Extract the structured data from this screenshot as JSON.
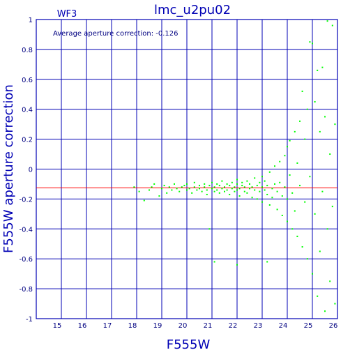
{
  "chart_data": {
    "type": "scatter",
    "title": "lmc_u2pu02",
    "panel_label": "WF3",
    "annotation": "Average aperture correction:  -0.126",
    "xlabel": "F555W",
    "ylabel": "F555W aperture correction",
    "xlim": [
      14,
      26
    ],
    "ylim": [
      -1,
      1
    ],
    "x_ticks": [
      "15",
      "16",
      "17",
      "18",
      "19",
      "20",
      "21",
      "22",
      "23",
      "24",
      "25",
      "26"
    ],
    "y_ticks": [
      "1",
      "0.8",
      "0.6",
      "0.4",
      "0.2",
      "0",
      "-0.2",
      "-0.4",
      "-0.6",
      "-0.8",
      "-1"
    ],
    "grid": true,
    "average_line": {
      "y": -0.126,
      "color": "#ff0000"
    },
    "colors": {
      "axes": "#0000b4",
      "points": "#00ff00",
      "text": "#000080"
    },
    "series": [
      {
        "points": [
          [
            17.9,
            -0.12
          ],
          [
            18.1,
            -0.15
          ],
          [
            18.3,
            -0.21
          ],
          [
            18.5,
            -0.14
          ],
          [
            18.6,
            -0.12
          ],
          [
            18.7,
            -0.1
          ],
          [
            18.9,
            -0.18
          ],
          [
            19.0,
            -0.13
          ],
          [
            19.1,
            -0.11
          ],
          [
            19.2,
            -0.16
          ],
          [
            19.3,
            -0.12
          ],
          [
            19.4,
            -0.14
          ],
          [
            19.5,
            -0.1
          ],
          [
            19.6,
            -0.13
          ],
          [
            19.7,
            -0.15
          ],
          [
            19.8,
            -0.12
          ],
          [
            19.9,
            -0.11
          ],
          [
            20.0,
            -0.14
          ],
          [
            20.0,
            -0.1
          ],
          [
            20.1,
            -0.13
          ],
          [
            20.2,
            -0.16
          ],
          [
            20.3,
            -0.12
          ],
          [
            20.3,
            -0.09
          ],
          [
            20.4,
            -0.14
          ],
          [
            20.5,
            -0.11
          ],
          [
            20.5,
            -0.13
          ],
          [
            20.6,
            -0.15
          ],
          [
            20.7,
            -0.1
          ],
          [
            20.7,
            -0.12
          ],
          [
            20.8,
            -0.14
          ],
          [
            20.8,
            -0.17
          ],
          [
            20.9,
            -0.11
          ],
          [
            21.0,
            -0.13
          ],
          [
            21.0,
            -0.09
          ],
          [
            21.1,
            -0.15
          ],
          [
            21.1,
            -0.12
          ],
          [
            21.2,
            -0.1
          ],
          [
            21.2,
            -0.14
          ],
          [
            21.3,
            -0.16
          ],
          [
            21.3,
            -0.11
          ],
          [
            21.4,
            -0.13
          ],
          [
            21.4,
            -0.08
          ],
          [
            21.5,
            -0.12
          ],
          [
            21.5,
            -0.15
          ],
          [
            21.6,
            -0.1
          ],
          [
            21.6,
            -0.14
          ],
          [
            21.7,
            -0.11
          ],
          [
            21.7,
            -0.17
          ],
          [
            21.8,
            -0.09
          ],
          [
            21.8,
            -0.13
          ],
          [
            21.9,
            -0.12
          ],
          [
            21.9,
            -0.15
          ],
          [
            22.0,
            -0.1
          ],
          [
            22.0,
            -0.14
          ],
          [
            22.0,
            -0.07
          ],
          [
            22.1,
            -0.13
          ],
          [
            22.1,
            -0.18
          ],
          [
            22.2,
            -0.11
          ],
          [
            22.2,
            -0.09
          ],
          [
            22.3,
            -0.15
          ],
          [
            22.3,
            -0.12
          ],
          [
            22.4,
            -0.08
          ],
          [
            22.4,
            -0.16
          ],
          [
            22.5,
            -0.13
          ],
          [
            22.5,
            -0.1
          ],
          [
            22.6,
            -0.19
          ],
          [
            22.6,
            -0.12
          ],
          [
            22.7,
            -0.06
          ],
          [
            22.7,
            -0.14
          ],
          [
            22.8,
            -0.11
          ],
          [
            22.8,
            -0.2
          ],
          [
            22.9,
            -0.09
          ],
          [
            22.9,
            -0.15
          ],
          [
            23.0,
            -0.12
          ],
          [
            23.0,
            -0.05
          ],
          [
            23.0,
            -0.22
          ],
          [
            23.1,
            -0.14
          ],
          [
            23.1,
            -0.08
          ],
          [
            23.2,
            -0.17
          ],
          [
            23.2,
            -0.11
          ],
          [
            23.3,
            -0.02
          ],
          [
            23.3,
            -0.24
          ],
          [
            23.4,
            -0.13
          ],
          [
            23.4,
            -0.19
          ],
          [
            23.5,
            0.02
          ],
          [
            23.5,
            -0.1
          ],
          [
            23.6,
            -0.27
          ],
          [
            23.6,
            -0.15
          ],
          [
            23.7,
            0.05
          ],
          [
            23.7,
            -0.09
          ],
          [
            23.8,
            -0.31
          ],
          [
            23.8,
            -0.18
          ],
          [
            23.9,
            0.09
          ],
          [
            23.9,
            -0.12
          ],
          [
            24.0,
            -0.35
          ],
          [
            24.0,
            0.15
          ],
          [
            24.0,
            -0.2
          ],
          [
            24.1,
            -0.04
          ],
          [
            24.1,
            0.19
          ],
          [
            24.2,
            -0.4
          ],
          [
            24.2,
            -0.16
          ],
          [
            24.3,
            0.25
          ],
          [
            24.3,
            -0.28
          ],
          [
            24.4,
            0.04
          ],
          [
            24.4,
            -0.45
          ],
          [
            24.5,
            0.32
          ],
          [
            24.5,
            -0.11
          ],
          [
            24.6,
            0.52
          ],
          [
            24.6,
            -0.52
          ],
          [
            24.7,
            0.2
          ],
          [
            24.7,
            -0.22
          ],
          [
            24.8,
            0.4
          ],
          [
            24.8,
            -0.6
          ],
          [
            24.9,
            0.85
          ],
          [
            24.9,
            -0.05
          ],
          [
            25.0,
            0.84
          ],
          [
            25.0,
            -0.7
          ],
          [
            25.1,
            0.45
          ],
          [
            25.1,
            -0.3
          ],
          [
            25.2,
            0.66
          ],
          [
            25.2,
            -0.85
          ],
          [
            25.3,
            0.25
          ],
          [
            25.3,
            -0.55
          ],
          [
            25.4,
            0.68
          ],
          [
            25.4,
            -0.15
          ],
          [
            25.5,
            0.35
          ],
          [
            25.5,
            -0.95
          ],
          [
            25.6,
            0.99
          ],
          [
            25.6,
            -0.4
          ],
          [
            25.7,
            0.1
          ],
          [
            25.7,
            -0.75
          ],
          [
            25.8,
            0.96
          ],
          [
            25.8,
            -0.25
          ],
          [
            25.9,
            0.3
          ],
          [
            25.9,
            -0.9
          ],
          [
            21.1,
            -0.62
          ],
          [
            22.0,
            -0.64
          ],
          [
            23.2,
            -0.62
          ],
          [
            20.9,
            -0.4
          ]
        ]
      }
    ]
  }
}
